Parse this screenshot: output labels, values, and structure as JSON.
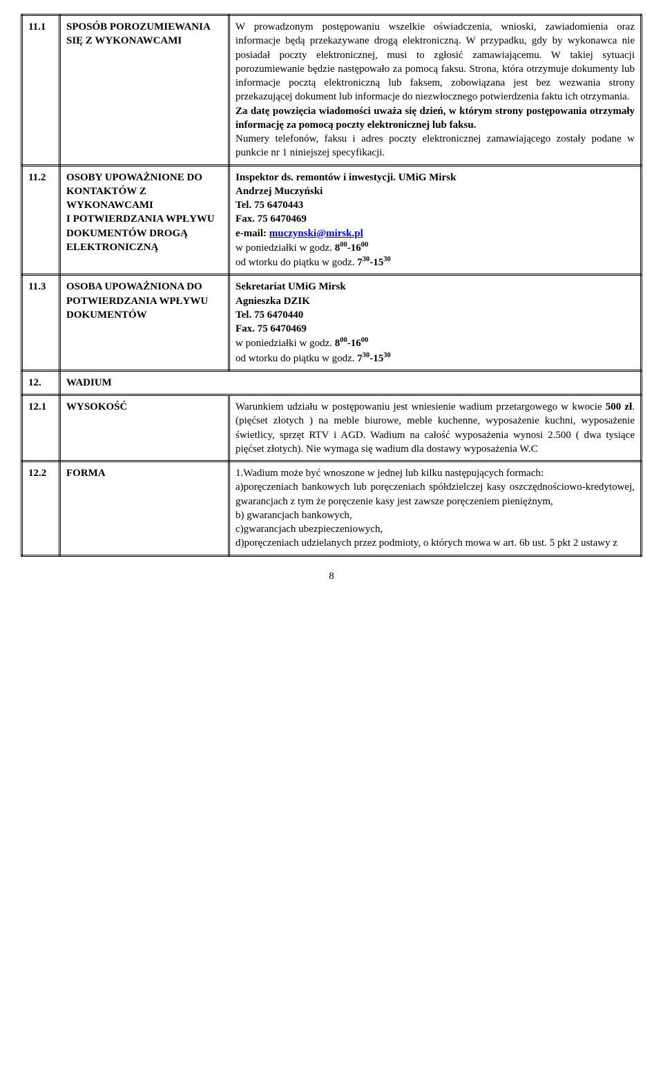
{
  "rows": [
    {
      "num": "11.1",
      "label": "SPOSÓB POROZUMIEWANIA SIĘ Z WYKONAWCAMI",
      "content_html": "W prowadzonym postępowaniu wszelkie oświadczenia, wnioski, zawiadomienia oraz informacje będą przekazywane drogą elektroniczną. W przypadku, gdy by wykonawca nie posiadał poczty elektronicznej, musi to zgłosić zamawiającemu. W&nbsp;takiej sytuacji porozumiewanie będzie następowało za pomocą faksu. Strona, która otrzymuje dokumenty lub informacje pocztą elektroniczną lub faksem, zobowiązana jest bez wezwania strony przekazującej dokument lub informacje do niezwłocznego potwierdzenia faktu ich otrzymania.<br><span class=\"bold\">Za datę powzięcia wiadomości uważa się dzień, w którym strony postępowania otrzymały informację za pomocą poczty elektronicznej lub faksu.</span><br>Numery telefonów, faksu i adres poczty elektronicznej zamawiającego zostały podane w punkcie nr 1 niniejszej specyfikacji."
    },
    {
      "num": "11.2",
      "label": "OSOBY UPOWAŻNIONE DO KONTAKTÓW Z WYKONAWCAMI I&nbsp;POTWIERDZANIA WPŁYWU DOKUMENTÓW DROGĄ ELEKTRONICZNĄ",
      "content_html": "<span class=\"bold\">Inspektor ds. remontów i inwestycji. UMiG Mirsk<br>Andrzej Muczyński<br>Tel. 75 6470443<br>Fax. 75 6470469<br>e-mail: <a class=\"email\">muczynski@mirsk.pl</a></span><br>w poniedziałki  w godz. <span class=\"bold\">8<sup>00</sup>-16<sup>00</sup></span><br>od wtorku do piątku  w godz. <span class=\"bold\">7<sup>30</sup>-15<sup>30</sup></span>"
    },
    {
      "num": "11.3",
      "label": "OSOBA UPOWAŻNIONA DO POTWIERDZANIA WPŁYWU DOKUMENTÓW",
      "content_html": "<span class=\"bold\">Sekretariat UMiG Mirsk<br>Agnieszka DZIK<br>Tel. 75 6470440<br>Fax. 75 6470469</span><br>w poniedziałki  w godz. <span class=\"bold\">8<sup>00</sup>-16<sup>00</sup></span><br>od wtorku do piątku  w godz. <span class=\"bold\">7<sup>30</sup>-15<sup>30</sup></span>"
    },
    {
      "num": "12.",
      "label": "WADIUM",
      "span": true
    },
    {
      "num": "12.1",
      "label": "WYSOKOŚĆ",
      "content_html": "Warunkiem udziału w postępowaniu jest wniesienie wadium przetargowego w kwocie <span class=\"bold\">500 zł</span>.(pięćset złotych ) na meble biurowe, meble kuchenne, wyposażenie kuchni, wyposażenie świetlicy, sprzęt RTV i AGD. Wadium na całość wyposażenia wynosi 2.500 ( dwa tysiące pięćset złotych). Nie wymaga się wadium dla dostawy wyposażenia W.C"
    },
    {
      "num": "12.2",
      "label": "FORMA",
      "content_html": "1.Wadium może być wnoszone w jednej lub kilku następujących formach:<br>a)poręczeniach bankowych lub poręczeniach spółdzielczej kasy oszczędnościowo-kredytowej, gwarancjach z tym że poręczenie kasy jest zawsze poręczeniem pieniężnym,<br>b) gwarancjach bankowych,<br>c)gwarancjach ubezpieczeniowych,<br>d)poręczeniach udzielanych przez podmioty, o których mowa w art. 6b ust. 5 pkt 2  ustawy z"
    }
  ],
  "page_number": "8"
}
